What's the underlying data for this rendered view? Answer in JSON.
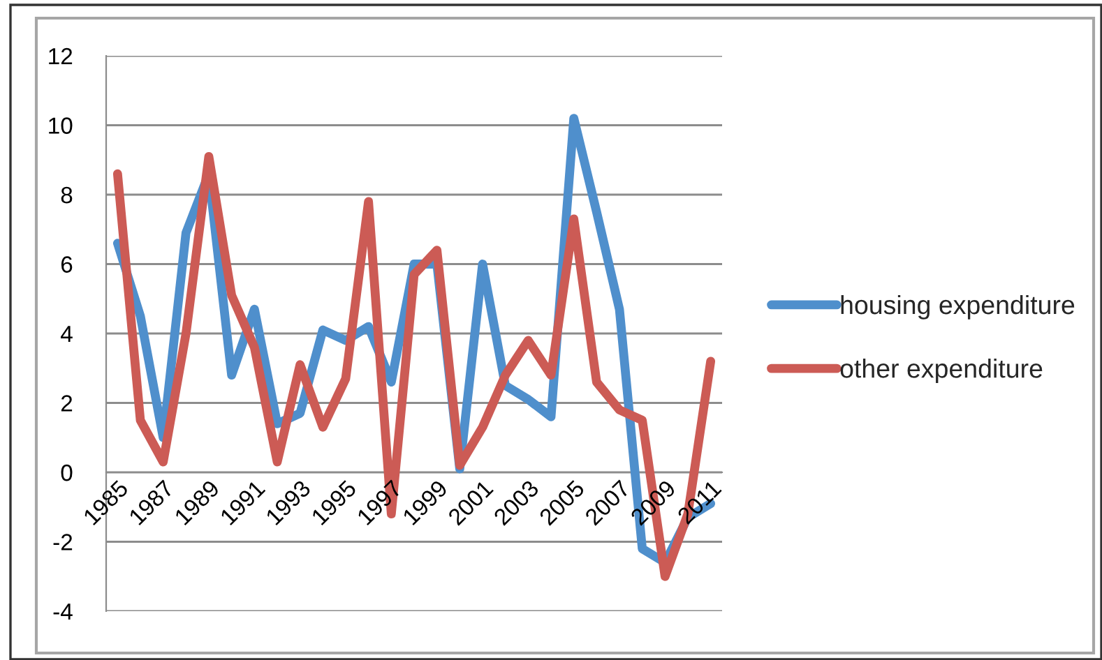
{
  "chart_data": {
    "type": "line",
    "categories": [
      "1985",
      null,
      "1987",
      null,
      "1989",
      null,
      "1991",
      null,
      "1993",
      null,
      "1995",
      null,
      "1997",
      null,
      "1999",
      null,
      "2001",
      null,
      "2003",
      null,
      "2005",
      null,
      "2007",
      null,
      "2009",
      null,
      "2011"
    ],
    "series": [
      {
        "name": "housing expenditure",
        "color": "#4f8fcc",
        "values": [
          6.6,
          4.5,
          1.0,
          6.9,
          8.6,
          2.8,
          4.7,
          1.4,
          1.7,
          4.1,
          3.8,
          4.2,
          2.6,
          6.0,
          6.0,
          0.1,
          6.0,
          2.5,
          2.1,
          1.6,
          10.2,
          7.5,
          4.7,
          -2.2,
          -2.6,
          -1.3,
          -0.9
        ]
      },
      {
        "name": "other expenditure",
        "color": "#cc5b55",
        "values": [
          8.6,
          1.5,
          0.3,
          4.0,
          9.1,
          5.1,
          3.6,
          0.3,
          3.1,
          1.3,
          2.7,
          7.8,
          -1.2,
          5.7,
          6.4,
          0.2,
          1.3,
          2.8,
          3.8,
          2.8,
          7.3,
          2.6,
          1.8,
          1.5,
          -3.0,
          -1.2,
          3.2
        ]
      }
    ],
    "ylim": [
      -4,
      12
    ],
    "yticks": [
      -4,
      -2,
      0,
      2,
      4,
      6,
      8,
      10,
      12
    ],
    "grid": "y",
    "legend": "right"
  }
}
